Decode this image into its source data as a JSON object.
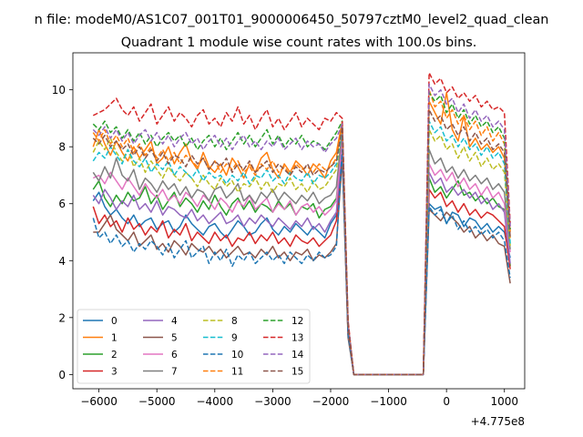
{
  "chart_data": {
    "type": "line",
    "suptitle": "n file: modeM0/AS1C07_001T01_9000006450_50797cztM0_level2_quad_clean",
    "title": "Quadrant 1 module wise count rates with 100.0s bins.",
    "xlabel": "",
    "ylabel": "",
    "x_offset_label": "+4.775e8",
    "xlim": [
      -6450,
      1350
    ],
    "ylim": [
      -0.5,
      11.3
    ],
    "x_ticks": [
      -6000,
      -5000,
      -4000,
      -3000,
      -2000,
      -1000,
      0,
      1000
    ],
    "x_tick_labels": [
      "−6000",
      "−5000",
      "−4000",
      "−3000",
      "−2000",
      "−1000",
      "0",
      "1000"
    ],
    "y_ticks": [
      0,
      2,
      4,
      6,
      8,
      10
    ],
    "y_tick_labels": [
      "0",
      "2",
      "4",
      "6",
      "8",
      "10"
    ],
    "x_start": -6100,
    "x_step": 100,
    "legend_position": "lower-left",
    "legend_columns": 4,
    "grid": false,
    "series": [
      {
        "name": "0",
        "color": "#1f77b4",
        "dash": "solid",
        "values": [
          6.1,
          6.4,
          5.9,
          5.6,
          5.8,
          5.5,
          5.3,
          5.6,
          5.2,
          5.4,
          5.5,
          5.1,
          5.3,
          5.4,
          5.0,
          5.2,
          5.6,
          5.3,
          5.1,
          4.9,
          5.2,
          5.3,
          5.0,
          4.8,
          5.1,
          5.4,
          5.2,
          4.9,
          5.0,
          5.3,
          5.5,
          5.1,
          4.9,
          5.2,
          5.0,
          5.3,
          5.1,
          4.9,
          5.2,
          5.0,
          4.8,
          5.3,
          5.6,
          8.4,
          1.5,
          0,
          0,
          0,
          0,
          0,
          0,
          0,
          0,
          0,
          0,
          0,
          0,
          0,
          6.0,
          5.8,
          5.9,
          5.3,
          5.7,
          5.6,
          5.2,
          5.5,
          5.4,
          5.1,
          5.3,
          5.0,
          5.2,
          5.0,
          4.1
        ]
      },
      {
        "name": "1",
        "color": "#ff7f0e",
        "dash": "solid",
        "values": [
          8.0,
          8.6,
          8.1,
          7.7,
          8.2,
          7.8,
          7.5,
          8.0,
          7.6,
          7.9,
          8.2,
          7.4,
          7.6,
          8.0,
          7.4,
          7.8,
          8.1,
          7.5,
          7.2,
          7.8,
          7.3,
          7.1,
          7.4,
          7.0,
          7.6,
          7.3,
          6.9,
          7.4,
          7.1,
          7.6,
          7.8,
          7.2,
          6.9,
          7.4,
          7.1,
          7.5,
          7.3,
          7.0,
          7.4,
          7.2,
          6.9,
          7.5,
          7.8,
          8.9,
          1.7,
          0,
          0,
          0,
          0,
          0,
          0,
          0,
          0,
          0,
          0,
          0,
          0,
          0,
          9.6,
          9.2,
          8.8,
          9.9,
          8.6,
          8.2,
          9.1,
          8.0,
          8.3,
          7.9,
          8.1,
          7.8,
          8.0,
          7.6,
          4.8
        ]
      },
      {
        "name": "2",
        "color": "#2ca02c",
        "dash": "solid",
        "values": [
          6.5,
          6.8,
          6.2,
          5.9,
          6.3,
          6.0,
          6.4,
          6.1,
          6.2,
          6.6,
          6.0,
          6.3,
          5.8,
          6.1,
          6.4,
          5.9,
          6.2,
          6.0,
          5.7,
          6.1,
          5.8,
          6.3,
          5.9,
          5.6,
          6.0,
          6.2,
          5.8,
          6.1,
          5.7,
          6.0,
          5.9,
          5.7,
          6.1,
          5.8,
          6.0,
          5.6,
          5.9,
          5.8,
          6.0,
          5.5,
          5.8,
          5.9,
          6.2,
          8.2,
          1.6,
          0,
          0,
          0,
          0,
          0,
          0,
          0,
          0,
          0,
          0,
          0,
          0,
          0,
          6.9,
          6.4,
          6.6,
          6.2,
          6.5,
          6.8,
          6.3,
          6.4,
          6.1,
          6.3,
          6.0,
          6.2,
          5.9,
          5.8,
          3.8
        ]
      },
      {
        "name": "3",
        "color": "#d62728",
        "dash": "solid",
        "values": [
          5.9,
          5.3,
          5.6,
          5.2,
          5.4,
          5.0,
          5.5,
          5.1,
          5.3,
          4.9,
          5.2,
          5.0,
          5.4,
          4.8,
          5.1,
          4.9,
          5.3,
          4.7,
          5.0,
          4.8,
          4.6,
          5.0,
          4.7,
          4.9,
          4.5,
          4.8,
          4.7,
          5.0,
          4.6,
          4.9,
          4.7,
          5.0,
          4.6,
          4.8,
          4.5,
          4.9,
          4.7,
          4.6,
          4.8,
          4.5,
          4.7,
          4.9,
          5.4,
          7.9,
          1.4,
          0,
          0,
          0,
          0,
          0,
          0,
          0,
          0,
          0,
          0,
          0,
          0,
          0,
          6.5,
          6.2,
          6.4,
          5.9,
          6.1,
          5.7,
          6.0,
          5.6,
          5.8,
          5.5,
          5.7,
          5.6,
          5.4,
          5.2,
          3.7
        ]
      },
      {
        "name": "4",
        "color": "#9467bd",
        "dash": "solid",
        "values": [
          6.3,
          6.0,
          6.5,
          6.2,
          5.8,
          6.1,
          5.9,
          6.3,
          5.8,
          6.0,
          5.7,
          6.1,
          5.6,
          5.9,
          5.8,
          5.6,
          5.5,
          5.8,
          5.4,
          5.6,
          5.3,
          5.5,
          5.7,
          5.3,
          5.4,
          5.6,
          5.2,
          5.5,
          5.3,
          5.6,
          5.4,
          5.2,
          5.5,
          5.3,
          5.1,
          5.4,
          5.2,
          5.5,
          5.1,
          5.3,
          5.0,
          5.4,
          5.7,
          8.1,
          1.5,
          0,
          0,
          0,
          0,
          0,
          0,
          0,
          0,
          0,
          0,
          0,
          0,
          0,
          7.1,
          6.7,
          6.9,
          6.4,
          6.6,
          6.3,
          6.5,
          6.2,
          6.4,
          6.0,
          6.2,
          5.8,
          6.0,
          5.7,
          3.9
        ]
      },
      {
        "name": "5",
        "color": "#8c564b",
        "dash": "solid",
        "values": [
          5.0,
          5.0,
          5.3,
          5.6,
          5.1,
          4.9,
          4.7,
          5.0,
          4.5,
          4.7,
          4.9,
          4.4,
          4.6,
          4.3,
          4.7,
          4.5,
          4.2,
          4.6,
          4.4,
          4.3,
          4.5,
          4.2,
          4.4,
          4.1,
          4.3,
          4.5,
          4.2,
          4.3,
          4.1,
          4.4,
          4.2,
          4.5,
          4.1,
          4.3,
          4.0,
          4.3,
          4.2,
          4.4,
          4.0,
          4.2,
          4.1,
          4.3,
          4.6,
          7.6,
          1.3,
          0,
          0,
          0,
          0,
          0,
          0,
          0,
          0,
          0,
          0,
          0,
          0,
          0,
          5.8,
          5.6,
          5.4,
          5.7,
          5.5,
          5.3,
          5.0,
          5.2,
          4.8,
          5.0,
          4.7,
          4.9,
          4.6,
          4.5,
          3.2
        ]
      },
      {
        "name": "6",
        "color": "#e377c2",
        "dash": "solid",
        "values": [
          6.9,
          7.0,
          6.7,
          7.1,
          6.8,
          6.5,
          6.9,
          6.6,
          6.3,
          6.7,
          6.4,
          6.2,
          6.5,
          6.1,
          6.3,
          6.0,
          6.4,
          6.2,
          5.9,
          6.3,
          6.1,
          5.8,
          6.2,
          6.0,
          5.7,
          6.1,
          5.9,
          6.3,
          5.8,
          6.0,
          6.2,
          5.7,
          6.0,
          5.8,
          6.1,
          5.6,
          5.9,
          6.0,
          5.7,
          5.9,
          5.6,
          5.8,
          6.1,
          8.3,
          1.6,
          0,
          0,
          0,
          0,
          0,
          0,
          0,
          0,
          0,
          0,
          0,
          0,
          0,
          7.4,
          7.0,
          7.2,
          6.8,
          7.1,
          6.6,
          6.9,
          6.5,
          6.7,
          6.3,
          6.6,
          6.2,
          6.4,
          6.0,
          4.3
        ]
      },
      {
        "name": "7",
        "color": "#7f7f7f",
        "dash": "solid",
        "values": [
          7.1,
          6.8,
          7.3,
          6.9,
          7.6,
          7.0,
          6.8,
          7.2,
          6.5,
          6.9,
          6.7,
          6.4,
          6.8,
          6.5,
          6.7,
          6.3,
          6.6,
          6.2,
          6.5,
          6.4,
          6.1,
          6.5,
          6.6,
          6.2,
          6.4,
          6.7,
          6.1,
          6.3,
          6.0,
          6.4,
          6.2,
          6.5,
          6.1,
          6.4,
          6.2,
          6.0,
          6.3,
          6.1,
          6.4,
          6.0,
          6.2,
          6.3,
          6.6,
          8.6,
          1.6,
          0,
          0,
          0,
          0,
          0,
          0,
          0,
          0,
          0,
          0,
          0,
          0,
          0,
          7.9,
          7.4,
          7.6,
          7.1,
          7.3,
          6.9,
          7.2,
          6.8,
          7.0,
          6.7,
          6.9,
          6.5,
          6.7,
          6.4,
          4.4
        ]
      },
      {
        "name": "8",
        "color": "#bcbd22",
        "dash": "dashed",
        "values": [
          7.8,
          8.2,
          7.9,
          8.3,
          7.8,
          7.5,
          7.9,
          7.3,
          7.6,
          7.1,
          7.5,
          7.2,
          6.9,
          7.3,
          7.0,
          6.8,
          7.1,
          6.9,
          6.6,
          7.0,
          6.7,
          6.5,
          6.9,
          6.6,
          6.8,
          6.4,
          6.7,
          6.6,
          6.9,
          6.5,
          6.8,
          6.4,
          6.7,
          6.6,
          6.9,
          6.5,
          6.7,
          6.4,
          6.8,
          6.5,
          6.6,
          6.9,
          7.2,
          8.7,
          1.7,
          0,
          0,
          0,
          0,
          0,
          0,
          0,
          0,
          0,
          0,
          0,
          0,
          0,
          8.6,
          8.2,
          8.4,
          7.9,
          8.1,
          7.6,
          8.0,
          7.5,
          7.8,
          7.3,
          7.6,
          7.2,
          7.4,
          7.1,
          4.5
        ]
      },
      {
        "name": "9",
        "color": "#17becf",
        "dash": "dashed",
        "values": [
          7.5,
          7.8,
          7.6,
          8.0,
          7.7,
          7.4,
          7.9,
          7.5,
          7.3,
          7.6,
          7.1,
          7.4,
          7.2,
          7.5,
          7.0,
          7.3,
          7.1,
          6.9,
          7.2,
          6.8,
          7.1,
          6.9,
          7.0,
          6.7,
          7.0,
          6.8,
          7.1,
          6.7,
          7.0,
          6.9,
          7.2,
          6.8,
          7.0,
          6.7,
          7.1,
          6.9,
          6.8,
          7.1,
          6.7,
          7.0,
          6.9,
          7.1,
          7.4,
          8.6,
          1.7,
          0,
          0,
          0,
          0,
          0,
          0,
          0,
          0,
          0,
          0,
          0,
          0,
          0,
          8.9,
          8.5,
          8.7,
          8.2,
          8.4,
          8.0,
          8.3,
          7.9,
          8.1,
          7.7,
          8.0,
          7.6,
          7.8,
          7.4,
          4.6
        ]
      },
      {
        "name": "10",
        "color": "#1f77b4",
        "dash": "dashed",
        "values": [
          5.5,
          4.8,
          5.0,
          4.6,
          4.9,
          4.5,
          4.7,
          4.3,
          4.6,
          4.4,
          4.7,
          4.5,
          4.2,
          4.6,
          4.1,
          4.4,
          4.7,
          4.1,
          4.3,
          4.5,
          3.9,
          4.3,
          4.0,
          4.4,
          3.8,
          4.2,
          4.0,
          4.3,
          3.9,
          4.1,
          4.3,
          4.0,
          4.2,
          3.9,
          4.3,
          4.1,
          3.9,
          4.2,
          4.0,
          4.3,
          4.1,
          4.2,
          4.5,
          7.9,
          1.4,
          0,
          0,
          0,
          0,
          0,
          0,
          0,
          0,
          0,
          0,
          0,
          0,
          0,
          5.9,
          5.6,
          5.8,
          5.3,
          5.6,
          5.1,
          5.4,
          5.0,
          5.2,
          4.9,
          5.1,
          4.8,
          5.0,
          4.7,
          3.4
        ]
      },
      {
        "name": "11",
        "color": "#ff7f0e",
        "dash": "dashed",
        "values": [
          8.5,
          8.2,
          8.6,
          8.1,
          8.4,
          8.0,
          8.3,
          7.8,
          8.1,
          7.7,
          8.0,
          7.6,
          7.9,
          7.5,
          7.8,
          7.4,
          7.7,
          7.5,
          7.3,
          7.6,
          7.2,
          7.5,
          7.1,
          7.4,
          7.2,
          7.5,
          7.1,
          7.3,
          7.0,
          7.4,
          7.2,
          7.5,
          7.1,
          7.3,
          7.0,
          7.4,
          7.2,
          7.3,
          7.1,
          7.4,
          7.2,
          7.3,
          7.6,
          8.8,
          1.8,
          0,
          0,
          0,
          0,
          0,
          0,
          0,
          0,
          0,
          0,
          0,
          0,
          0,
          10.0,
          9.4,
          9.6,
          9.0,
          9.3,
          8.8,
          9.1,
          8.6,
          8.9,
          8.4,
          8.7,
          8.2,
          8.5,
          8.1,
          5.0
        ]
      },
      {
        "name": "12",
        "color": "#2ca02c",
        "dash": "dashed",
        "values": [
          8.8,
          8.6,
          8.9,
          8.5,
          8.7,
          8.3,
          8.6,
          8.2,
          8.5,
          8.1,
          8.4,
          8.0,
          8.3,
          8.5,
          8.2,
          8.4,
          8.0,
          8.3,
          7.9,
          8.2,
          8.4,
          8.0,
          8.3,
          7.9,
          8.2,
          8.5,
          8.1,
          8.4,
          8.0,
          8.3,
          8.6,
          8.1,
          8.4,
          8.0,
          8.3,
          8.1,
          8.4,
          8.0,
          8.2,
          8.1,
          7.9,
          8.2,
          8.5,
          8.9,
          1.8,
          0,
          0,
          0,
          0,
          0,
          0,
          0,
          0,
          0,
          0,
          0,
          0,
          0,
          9.9,
          9.6,
          9.8,
          9.2,
          9.5,
          9.0,
          9.3,
          8.8,
          9.1,
          8.7,
          8.9,
          8.5,
          8.7,
          8.3,
          5.1
        ]
      },
      {
        "name": "13",
        "color": "#d62728",
        "dash": "dashed",
        "values": [
          9.1,
          9.2,
          9.3,
          9.5,
          9.7,
          9.3,
          9.1,
          9.4,
          8.9,
          9.2,
          9.5,
          8.8,
          9.1,
          9.4,
          8.9,
          9.2,
          9.0,
          8.7,
          9.1,
          9.3,
          8.8,
          9.0,
          8.7,
          9.2,
          8.9,
          9.4,
          8.8,
          9.1,
          8.6,
          9.0,
          9.3,
          8.7,
          9.0,
          8.6,
          8.9,
          9.2,
          8.7,
          9.0,
          8.8,
          8.6,
          9.0,
          8.9,
          9.2,
          9.0,
          1.9,
          0,
          0,
          0,
          0,
          0,
          0,
          0,
          0,
          0,
          0,
          0,
          0,
          0,
          10.6,
          10.2,
          10.4,
          9.9,
          10.1,
          9.7,
          9.9,
          9.6,
          9.8,
          9.4,
          9.6,
          9.3,
          9.4,
          9.2,
          5.3
        ]
      },
      {
        "name": "14",
        "color": "#9467bd",
        "dash": "dashed",
        "values": [
          8.6,
          8.4,
          8.7,
          8.3,
          8.6,
          8.2,
          8.5,
          8.1,
          8.4,
          8.6,
          8.2,
          8.5,
          8.1,
          8.4,
          8.0,
          8.3,
          8.5,
          8.1,
          8.3,
          7.9,
          8.2,
          8.4,
          8.0,
          8.3,
          7.9,
          8.2,
          8.4,
          8.0,
          8.2,
          7.9,
          8.2,
          8.0,
          8.3,
          7.9,
          8.1,
          8.3,
          7.9,
          8.2,
          8.0,
          8.1,
          7.8,
          8.1,
          8.3,
          8.8,
          1.8,
          0,
          0,
          0,
          0,
          0,
          0,
          0,
          0,
          0,
          0,
          0,
          0,
          0,
          10.2,
          9.8,
          10.0,
          9.5,
          9.7,
          9.2,
          9.5,
          9.0,
          9.3,
          8.9,
          9.1,
          8.7,
          8.9,
          8.6,
          5.2
        ]
      },
      {
        "name": "15",
        "color": "#8c564b",
        "dash": "dashed",
        "values": [
          8.3,
          8.1,
          8.4,
          8.0,
          8.2,
          7.9,
          8.1,
          7.7,
          8.0,
          7.6,
          7.9,
          7.5,
          7.8,
          7.4,
          7.7,
          7.6,
          7.3,
          7.7,
          7.4,
          7.6,
          7.2,
          7.5,
          7.3,
          7.6,
          7.1,
          7.4,
          7.2,
          7.5,
          7.1,
          7.3,
          7.5,
          7.1,
          7.4,
          7.2,
          7.0,
          7.3,
          7.1,
          7.4,
          7.0,
          7.2,
          7.1,
          7.3,
          7.5,
          8.7,
          1.7,
          0,
          0,
          0,
          0,
          0,
          0,
          0,
          0,
          0,
          0,
          0,
          0,
          0,
          9.3,
          8.9,
          9.1,
          8.6,
          8.8,
          8.4,
          8.7,
          8.2,
          8.5,
          8.1,
          8.3,
          7.9,
          8.1,
          7.8,
          4.8
        ]
      }
    ]
  }
}
